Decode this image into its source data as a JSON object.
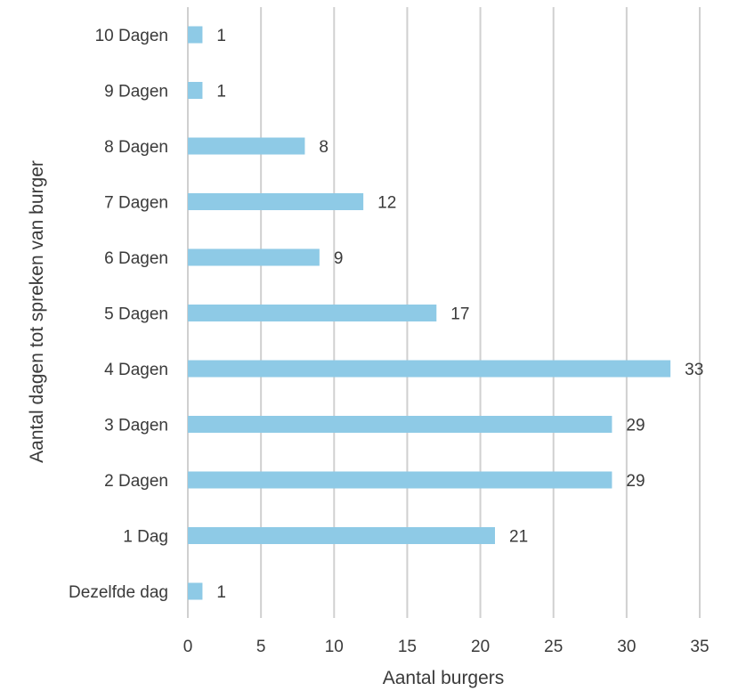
{
  "chart_data": {
    "type": "bar",
    "orientation": "horizontal",
    "categories": [
      "10 Dagen",
      "9 Dagen",
      "8 Dagen",
      "7 Dagen",
      "6 Dagen",
      "5 Dagen",
      "4 Dagen",
      "3 Dagen",
      "2 Dagen",
      "1 Dag",
      "Dezelfde dag"
    ],
    "values": [
      1,
      1,
      8,
      12,
      9,
      17,
      33,
      29,
      29,
      21,
      1
    ],
    "title": "",
    "xlabel": "Aantal burgers",
    "ylabel": "Aantal dagen tot spreken van burger",
    "xlim": [
      0,
      35
    ],
    "xticks": [
      0,
      5,
      10,
      15,
      20,
      25,
      30,
      35
    ],
    "grid": true,
    "legend": "none",
    "bar_color": "#8ecae6",
    "grid_color": "#d0d0d0",
    "text_color": "#3a3a3a"
  }
}
